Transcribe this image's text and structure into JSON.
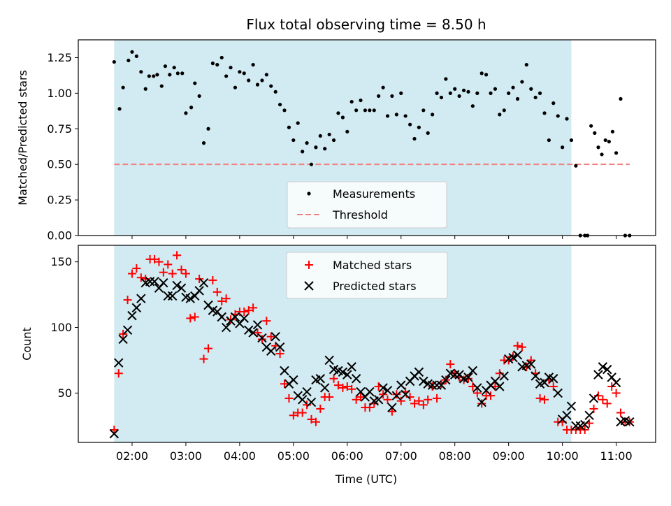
{
  "chart_data": {
    "title": "Flux total observing time = 8.50 h",
    "xlabel": "Time (UTC)",
    "x_unit": "hours UTC",
    "xlim": [
      1.0,
      11.733
    ],
    "xticks": [
      2,
      3,
      4,
      5,
      6,
      7,
      8,
      9,
      10,
      11
    ],
    "xtick_labels": [
      "02:00",
      "03:00",
      "04:00",
      "05:00",
      "06:00",
      "07:00",
      "08:00",
      "09:00",
      "10:00",
      "11:00"
    ],
    "shaded_region": {
      "x_start": 1.667,
      "x_end": 10.167,
      "color": "#add8e6"
    },
    "panels": [
      {
        "name": "top",
        "type": "scatter",
        "ylabel": "Matched/Predicted stars",
        "ylim": [
          0,
          1.375
        ],
        "yticks": [
          0,
          0.25,
          0.5,
          0.75,
          1.0,
          1.25
        ],
        "ytick_labels": [
          "0.00",
          "0.25",
          "0.50",
          "0.75",
          "1.00",
          "1.25"
        ],
        "legend": {
          "placement": "bottom-center",
          "entries": [
            "Measurements",
            "Threshold"
          ]
        },
        "series": [
          {
            "name": "Measurements",
            "kind": "scatter",
            "marker": "dot",
            "color": "#000000",
            "x": [
              1.667,
              1.767,
              1.833,
              1.933,
              2.0,
              2.083,
              2.167,
              2.25,
              2.317,
              2.4,
              2.467,
              2.55,
              2.617,
              2.7,
              2.783,
              2.85,
              2.933,
              3.0,
              3.1,
              3.167,
              3.25,
              3.333,
              3.417,
              3.5,
              3.583,
              3.667,
              3.75,
              3.833,
              3.917,
              4.0,
              4.083,
              4.167,
              4.25,
              4.333,
              4.417,
              4.5,
              4.583,
              4.667,
              4.75,
              4.833,
              4.917,
              5.0,
              5.083,
              5.167,
              5.25,
              5.333,
              5.417,
              5.5,
              5.583,
              5.667,
              5.75,
              5.833,
              5.917,
              6.0,
              6.083,
              6.167,
              6.25,
              6.333,
              6.417,
              6.5,
              6.583,
              6.667,
              6.75,
              6.833,
              6.917,
              7.0,
              7.083,
              7.167,
              7.25,
              7.333,
              7.417,
              7.5,
              7.583,
              7.667,
              7.75,
              7.833,
              7.917,
              8.0,
              8.083,
              8.167,
              8.25,
              8.333,
              8.417,
              8.5,
              8.583,
              8.667,
              8.75,
              8.833,
              8.917,
              9.0,
              9.083,
              9.167,
              9.25,
              9.333,
              9.417,
              9.5,
              9.583,
              9.667,
              9.75,
              9.833,
              9.917,
              10.0,
              10.083,
              10.167,
              10.25,
              10.333,
              10.417,
              10.467,
              10.533,
              10.6,
              10.667,
              10.733,
              10.8,
              10.867,
              10.933,
              11.0,
              11.083,
              11.167,
              11.25
            ],
            "y": [
              1.22,
              0.89,
              1.04,
              1.23,
              1.29,
              1.26,
              1.15,
              1.03,
              1.12,
              1.12,
              1.13,
              1.05,
              1.19,
              1.13,
              1.18,
              1.14,
              1.14,
              0.86,
              0.9,
              1.07,
              0.98,
              0.65,
              0.75,
              1.21,
              1.2,
              1.25,
              1.12,
              1.18,
              1.04,
              1.15,
              1.14,
              1.09,
              1.2,
              1.06,
              1.09,
              1.13,
              1.05,
              1.01,
              0.92,
              0.88,
              0.76,
              0.67,
              0.79,
              0.59,
              0.65,
              0.5,
              0.62,
              0.7,
              0.61,
              0.71,
              0.67,
              0.86,
              0.83,
              0.73,
              0.94,
              0.88,
              0.95,
              0.88,
              0.88,
              0.88,
              0.98,
              1.04,
              0.84,
              0.98,
              0.85,
              1.0,
              0.84,
              0.78,
              0.68,
              0.76,
              0.88,
              0.72,
              0.85,
              1.0,
              0.97,
              1.1,
              1.0,
              1.03,
              0.98,
              1.02,
              1.01,
              0.91,
              1.0,
              1.14,
              1.13,
              1.0,
              1.03,
              0.85,
              0.88,
              1.0,
              1.04,
              0.96,
              1.08,
              1.2,
              1.03,
              0.97,
              1.0,
              0.86,
              0.67,
              0.93,
              0.84,
              0.62,
              0.82,
              0.67,
              0.49,
              0.0,
              0.0,
              0.0,
              0.77,
              0.72,
              0.62,
              0.57,
              0.67,
              0.66,
              0.73,
              0.58,
              0.96,
              0.0,
              0.0
            ]
          },
          {
            "name": "Threshold",
            "kind": "dashed-line",
            "color": "#f08080",
            "x": [
              1.667,
              11.25
            ],
            "y": [
              0.5,
              0.5
            ]
          }
        ]
      },
      {
        "name": "bottom",
        "type": "scatter",
        "ylabel": "Count",
        "ylim": [
          12.4,
          162.6
        ],
        "yticks": [
          50,
          100,
          150
        ],
        "ytick_labels": [
          "50",
          "100",
          "150"
        ],
        "legend": {
          "placement": "top-center",
          "entries": [
            "Matched stars",
            "Predicted stars"
          ]
        },
        "series": [
          {
            "name": "Matched stars",
            "kind": "scatter",
            "marker": "plus",
            "color": "#ff0000",
            "x": [
              1.667,
              1.75,
              1.833,
              1.917,
              2.0,
              2.083,
              2.167,
              2.25,
              2.333,
              2.417,
              2.5,
              2.583,
              2.667,
              2.75,
              2.833,
              2.917,
              3.0,
              3.083,
              3.167,
              3.25,
              3.333,
              3.417,
              3.5,
              3.583,
              3.667,
              3.75,
              3.833,
              3.917,
              4.0,
              4.083,
              4.167,
              4.25,
              4.333,
              4.417,
              4.5,
              4.583,
              4.667,
              4.75,
              4.833,
              4.917,
              5.0,
              5.083,
              5.167,
              5.25,
              5.333,
              5.417,
              5.5,
              5.583,
              5.667,
              5.75,
              5.833,
              5.917,
              6.0,
              6.083,
              6.167,
              6.25,
              6.333,
              6.417,
              6.5,
              6.583,
              6.667,
              6.75,
              6.833,
              6.917,
              7.0,
              7.083,
              7.167,
              7.25,
              7.333,
              7.417,
              7.5,
              7.583,
              7.667,
              7.75,
              7.833,
              7.917,
              8.0,
              8.083,
              8.167,
              8.25,
              8.333,
              8.417,
              8.5,
              8.583,
              8.667,
              8.75,
              8.833,
              8.917,
              9.0,
              9.083,
              9.167,
              9.25,
              9.333,
              9.417,
              9.5,
              9.583,
              9.667,
              9.75,
              9.833,
              9.917,
              10.0,
              10.083,
              10.167,
              10.25,
              10.333,
              10.417,
              10.5,
              10.583,
              10.667,
              10.75,
              10.833,
              10.917,
              11.0,
              11.083,
              11.167,
              11.25
            ],
            "y": [
              22,
              65,
              95,
              121,
              141,
              145,
              138,
              137,
              152,
              152,
              150,
              142,
              148,
              141,
              155,
              144,
              141,
              107,
              108,
              137,
              76,
              84,
              136,
              127,
              120,
              122,
              106,
              110,
              112,
              112,
              113,
              115,
              96,
              91,
              105,
              93,
              86,
              80,
              57,
              46,
              33,
              35,
              35,
              41,
              30,
              28,
              38,
              47,
              47,
              61,
              56,
              54,
              55,
              53,
              45,
              47,
              39,
              39,
              42,
              55,
              49,
              45,
              36,
              49,
              44,
              51,
              47,
              42,
              44,
              41,
              45,
              55,
              46,
              57,
              60,
              72,
              65,
              62,
              60,
              61,
              55,
              50,
              42,
              48,
              48,
              55,
              65,
              75,
              75,
              78,
              86,
              85,
              70,
              75,
              65,
              46,
              45,
              60,
              55,
              28,
              28,
              22,
              22,
              22,
              22,
              22,
              27,
              38,
              48,
              45,
              42,
              55,
              50,
              35,
              28,
              28
            ]
          },
          {
            "name": "Predicted stars",
            "kind": "scatter",
            "marker": "x",
            "color": "#000000",
            "x": [
              1.667,
              1.75,
              1.833,
              1.917,
              2.0,
              2.083,
              2.167,
              2.25,
              2.333,
              2.417,
              2.5,
              2.583,
              2.667,
              2.75,
              2.833,
              2.917,
              3.0,
              3.083,
              3.167,
              3.25,
              3.333,
              3.417,
              3.5,
              3.583,
              3.667,
              3.75,
              3.833,
              3.917,
              4.0,
              4.083,
              4.167,
              4.25,
              4.333,
              4.417,
              4.5,
              4.583,
              4.667,
              4.75,
              4.833,
              4.917,
              5.0,
              5.083,
              5.167,
              5.25,
              5.333,
              5.417,
              5.5,
              5.583,
              5.667,
              5.75,
              5.833,
              5.917,
              6.0,
              6.083,
              6.167,
              6.25,
              6.333,
              6.417,
              6.5,
              6.583,
              6.667,
              6.75,
              6.833,
              6.917,
              7.0,
              7.083,
              7.167,
              7.25,
              7.333,
              7.417,
              7.5,
              7.583,
              7.667,
              7.75,
              7.833,
              7.917,
              8.0,
              8.083,
              8.167,
              8.25,
              8.333,
              8.417,
              8.5,
              8.583,
              8.667,
              8.75,
              8.833,
              8.917,
              9.0,
              9.083,
              9.167,
              9.25,
              9.333,
              9.417,
              9.5,
              9.583,
              9.667,
              9.75,
              9.833,
              9.917,
              10.0,
              10.083,
              10.167,
              10.25,
              10.333,
              10.417,
              10.5,
              10.583,
              10.667,
              10.75,
              10.833,
              10.917,
              11.0,
              11.083,
              11.167,
              11.25
            ],
            "y": [
              19,
              73,
              91,
              98,
              109,
              115,
              122,
              134,
              135,
              135,
              130,
              134,
              124,
              124,
              132,
              130,
              123,
              122,
              124,
              128,
              134,
              117,
              113,
              112,
              108,
              100,
              105,
              108,
              103,
              107,
              98,
              96,
              102,
              92,
              85,
              82,
              93,
              85,
              67,
              57,
              60,
              48,
              45,
              51,
              43,
              60,
              61,
              54,
              75,
              68,
              67,
              66,
              64,
              70,
              61,
              51,
              47,
              51,
              44,
              45,
              54,
              52,
              39,
              48,
              56,
              49,
              59,
              63,
              66,
              59,
              57,
              56,
              56,
              56,
              60,
              65,
              64,
              64,
              61,
              62,
              67,
              54,
              43,
              52,
              56,
              59,
              55,
              63,
              76,
              77,
              79,
              70,
              71,
              72,
              63,
              57,
              58,
              62,
              61,
              50,
              30,
              33,
              40,
              25,
              25,
              26,
              33,
              46,
              64,
              70,
              68,
              62,
              58,
              28,
              29,
              28
            ]
          }
        ]
      }
    ]
  }
}
